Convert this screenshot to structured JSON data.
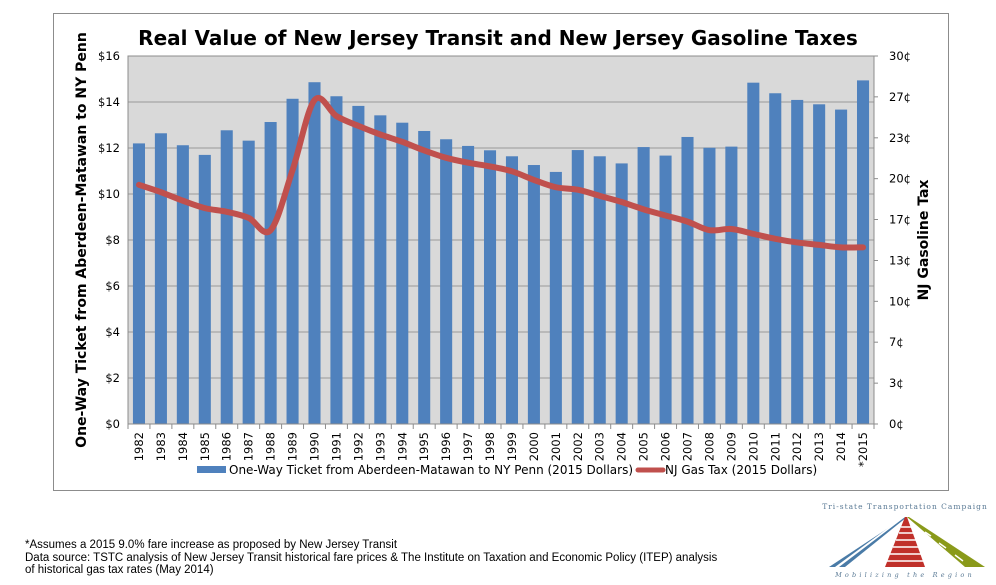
{
  "chart_data": {
    "type": "bar",
    "title": "Real Value of New Jersey Transit and New Jersey Gasoline Taxes",
    "categories": [
      "1982",
      "1983",
      "1984",
      "1985",
      "1986",
      "1987",
      "1988",
      "1989",
      "1990",
      "1991",
      "1992",
      "1993",
      "1994",
      "1995",
      "1996",
      "1997",
      "1998",
      "1999",
      "2000",
      "2001",
      "2002",
      "2003",
      "2004",
      "2005",
      "2006",
      "2007",
      "2008",
      "2009",
      "2010",
      "2011",
      "2012",
      "2013",
      "2014",
      "*2015"
    ],
    "xlabel": "",
    "ylabel": "One-Way Ticket from Aberdeen-Matawan to NY Penn",
    "y2label": "NJ Gasoline Tax",
    "ylim": [
      0,
      16
    ],
    "y2lim": [
      0,
      30
    ],
    "yticks": [
      0,
      2,
      4,
      6,
      8,
      10,
      12,
      14,
      16
    ],
    "ytick_labels": [
      "$0",
      "$2",
      "$4",
      "$6",
      "$8",
      "$10",
      "$12",
      "$14",
      "$16"
    ],
    "y2ticks": [
      0,
      3.33,
      6.67,
      10,
      13.33,
      16.67,
      20,
      23.33,
      26.67,
      30
    ],
    "y2tick_labels": [
      "0¢",
      "3¢",
      "7¢",
      "10¢",
      "13¢",
      "17¢",
      "20¢",
      "23¢",
      "27¢",
      "30¢"
    ],
    "grid": true,
    "legend_position": "bottom",
    "series": [
      {
        "name": "One-Way Ticket from Aberdeen-Matawan to NY Penn (2015 Dollars)",
        "type": "bar",
        "axis": "left",
        "color": "#4f81bd",
        "values": [
          12.2,
          12.64,
          12.12,
          11.7,
          12.77,
          12.32,
          13.13,
          14.14,
          14.86,
          14.25,
          13.83,
          13.42,
          13.1,
          12.74,
          12.38,
          12.09,
          11.9,
          11.64,
          11.26,
          10.96,
          11.91,
          11.64,
          11.33,
          12.04,
          11.67,
          12.48,
          12.01,
          12.06,
          14.84,
          14.38,
          14.09,
          13.9,
          13.67,
          14.94
        ]
      },
      {
        "name": "NJ Gas Tax (2015 Dollars)",
        "type": "line",
        "axis": "right",
        "color": "#c0504d",
        "values": [
          19.5,
          18.9,
          18.2,
          17.6,
          17.3,
          16.8,
          15.8,
          20.7,
          26.4,
          25.1,
          24.3,
          23.6,
          23.0,
          22.3,
          21.7,
          21.3,
          21.0,
          20.6,
          19.9,
          19.3,
          19.1,
          18.6,
          18.1,
          17.5,
          17.0,
          16.5,
          15.8,
          15.9,
          15.5,
          15.1,
          14.8,
          14.6,
          14.4,
          14.4
        ]
      }
    ]
  },
  "colors": {
    "plot_background": "#d9d9d9",
    "gridline": "#a6a6a6",
    "bar": "#4f81bd",
    "line": "#c0504d"
  },
  "footnotes": {
    "assumption": "*Assumes a 2015  9.0% fare increase as proposed by New Jersey Transit",
    "source_line1": "Data source: TSTC analysis of New Jersey Transit historical fare prices & The Institute on Taxation and Economic Policy (ITEP) analysis",
    "source_line2": "of historical gas tax rates (May 2014)"
  },
  "logo": {
    "name": "Tri-state Transportation Campaign",
    "tagline": "Mobilizing the Region"
  }
}
